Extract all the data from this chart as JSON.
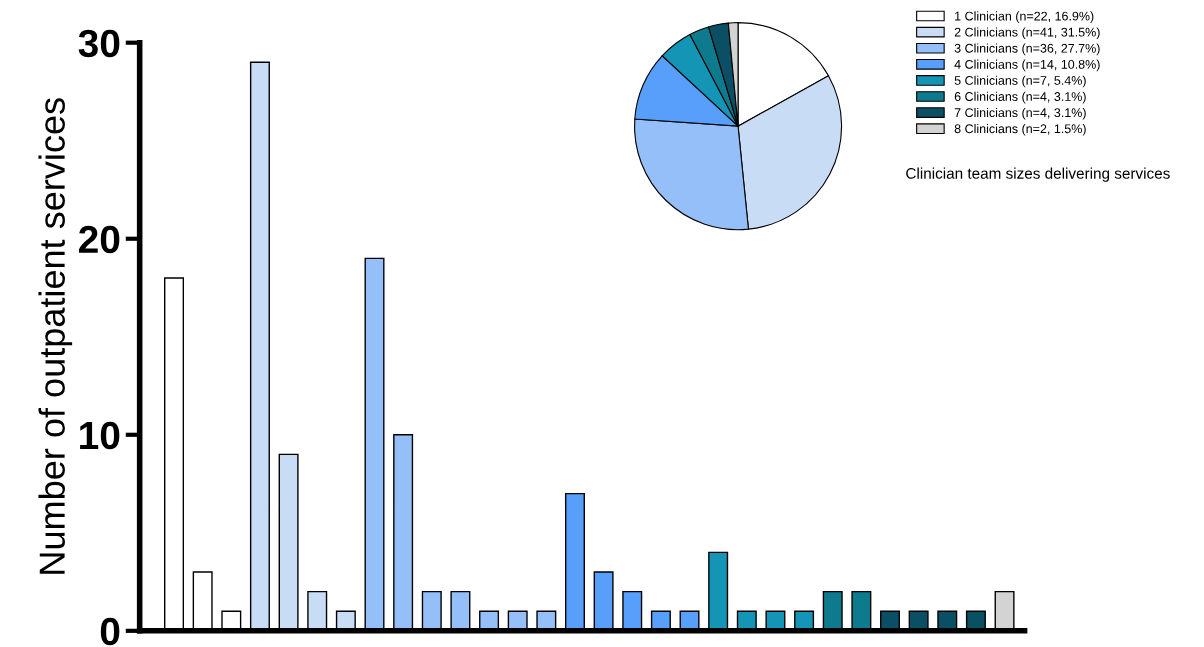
{
  "chart_data": [
    {
      "type": "bar",
      "ylabel": "Number of outpatient services",
      "categories": [
        null,
        null,
        null,
        null,
        null,
        null,
        null,
        null,
        null,
        null,
        null,
        null,
        null,
        null,
        null,
        null,
        null,
        null,
        null,
        null,
        null,
        null,
        null,
        null,
        null,
        null,
        null,
        null,
        null,
        null
      ],
      "values": [
        18,
        3,
        1,
        29,
        9,
        2,
        1,
        19,
        10,
        2,
        2,
        1,
        1,
        1,
        7,
        3,
        2,
        1,
        1,
        4,
        1,
        1,
        1,
        2,
        2,
        1,
        1,
        1,
        1,
        2
      ],
      "colors": [
        "#ffffff",
        "#ffffff",
        "#ffffff",
        "#c9dcf5",
        "#c9dcf5",
        "#c9dcf5",
        "#c9dcf5",
        "#94bff8",
        "#94bff8",
        "#94bff8",
        "#94bff8",
        "#94bff8",
        "#94bff8",
        "#94bff8",
        "#579ffa",
        "#579ffa",
        "#579ffa",
        "#579ffa",
        "#579ffa",
        "#1595b5",
        "#1595b5",
        "#1595b5",
        "#1595b5",
        "#0e7a8d",
        "#0e7a8d",
        "#0a4f63",
        "#0a4f63",
        "#0a4f63",
        "#0a4f63",
        "#d3d3d3"
      ],
      "ylim": [
        0,
        30
      ],
      "yticks": [
        0,
        10,
        20,
        30
      ],
      "grid": false
    },
    {
      "type": "pie",
      "categories": [
        "1 Clinician (n=22, 16.9%)",
        "2 Clinicians (n=41, 31.5%)",
        "3 Clinicians (n=36, 27.7%)",
        "4 Clinicians (n=14, 10.8%)",
        "5 Clinicians (n=7, 5.4%)",
        "6 Clinicians (n=4, 3.1%)",
        "7 Clinicians (n=4, 3.1%)",
        "8 Clinicians (n=2, 1.5%)"
      ],
      "values": [
        16.9,
        31.5,
        27.7,
        10.8,
        5.4,
        3.1,
        3.1,
        1.5
      ],
      "colors": [
        "#ffffff",
        "#c9dcf5",
        "#94bff8",
        "#579ffa",
        "#1595b5",
        "#0e7a8d",
        "#0a4f63",
        "#d3d3d3"
      ],
      "legend": "right",
      "annotations": [
        "Clinician team sizes delivering services"
      ]
    }
  ]
}
